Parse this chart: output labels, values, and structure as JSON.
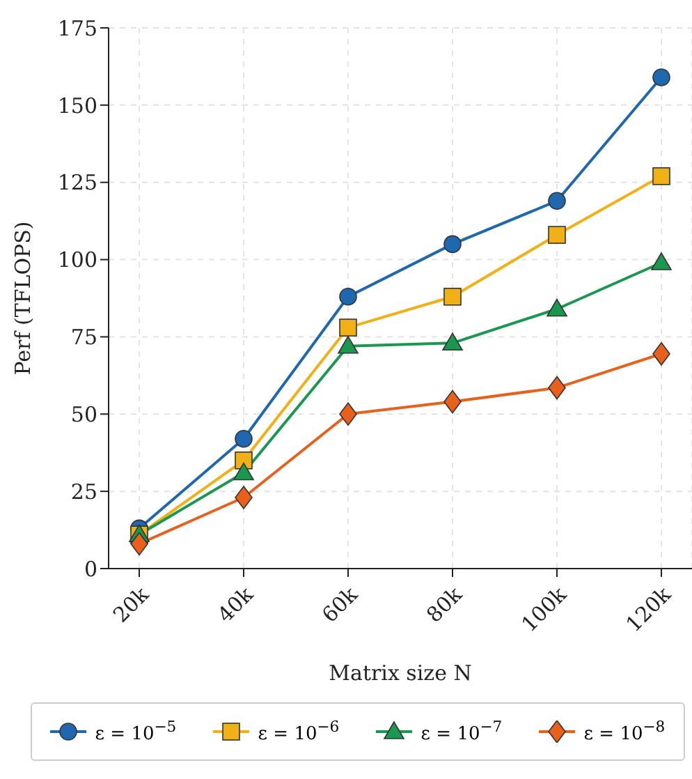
{
  "chart_data": {
    "type": "line",
    "xlabel": "Matrix size N",
    "ylabel": "Perf (TFLOPS)",
    "categories": [
      "20k",
      "40k",
      "60k",
      "80k",
      "100k",
      "120k"
    ],
    "ylim": [
      0,
      175
    ],
    "yticks": [
      0,
      25,
      50,
      75,
      100,
      125,
      150,
      175
    ],
    "grid": true,
    "legend": "bottom",
    "line_style": "solid",
    "series": [
      {
        "name": "ε = 10$^{−5}$",
        "color": "#1f68b0",
        "marker": "circle",
        "values": [
          13,
          42,
          88,
          105,
          119,
          159
        ]
      },
      {
        "name": "ε = 10$^{−6}$",
        "color": "#f0b016",
        "marker": "square",
        "values": [
          11,
          35,
          78,
          88,
          108,
          127
        ]
      },
      {
        "name": "ε = 10$^{−7}$",
        "color": "#1a9850",
        "marker": "triangle",
        "values": [
          11,
          31,
          72,
          73,
          84,
          99
        ]
      },
      {
        "name": "ε = 10$^{−8}$",
        "color": "#e8601c",
        "marker": "diamond",
        "values": [
          8,
          23,
          50,
          54,
          58.5,
          69.5
        ]
      }
    ]
  }
}
